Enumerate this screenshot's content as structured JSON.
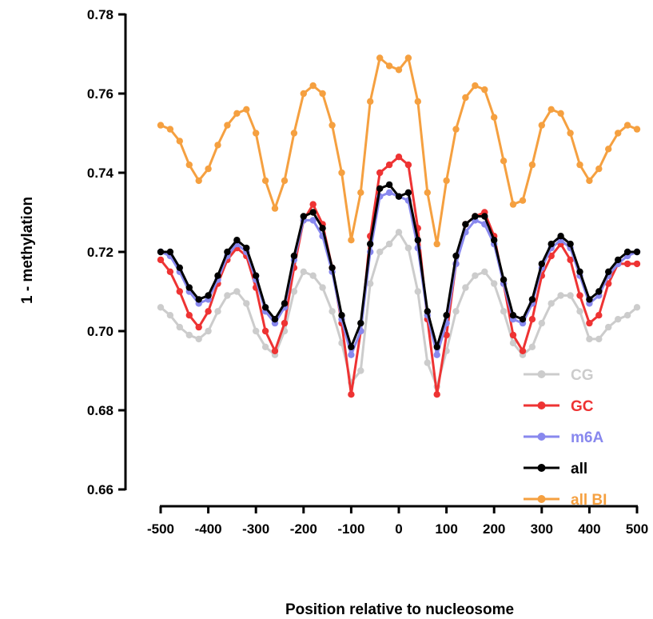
{
  "chart_data": {
    "type": "line",
    "xlabel": "Position relative to nucleosome",
    "ylabel": "1 - methylation",
    "xlim": [
      -500,
      500
    ],
    "ylim": [
      0.66,
      0.78
    ],
    "x_ticks": [
      -500,
      -400,
      -300,
      -200,
      -100,
      0,
      100,
      200,
      300,
      400,
      500
    ],
    "x_tick_labels": [
      "-500",
      "-400",
      "-300",
      "-200",
      "-100",
      "0",
      "100",
      "200",
      "300",
      "400",
      "500"
    ],
    "y_ticks": [
      0.66,
      0.68,
      0.7,
      0.72,
      0.74,
      0.76,
      0.78
    ],
    "y_tick_labels": [
      "0.66",
      "0.68",
      "0.70",
      "0.72",
      "0.74",
      "0.76",
      "0.78"
    ],
    "grid": false,
    "legend_position": "bottom-right",
    "x": [
      -500,
      -480,
      -460,
      -440,
      -420,
      -400,
      -380,
      -360,
      -340,
      -320,
      -300,
      -280,
      -260,
      -240,
      -220,
      -200,
      -180,
      -160,
      -140,
      -120,
      -100,
      -80,
      -60,
      -40,
      -20,
      0,
      20,
      40,
      60,
      80,
      100,
      120,
      140,
      160,
      180,
      200,
      220,
      240,
      260,
      280,
      300,
      320,
      340,
      360,
      380,
      400,
      420,
      440,
      460,
      480,
      500
    ],
    "series": [
      {
        "name": "CG",
        "color": "#cccccc",
        "values": [
          0.706,
          0.704,
          0.701,
          0.699,
          0.698,
          0.7,
          0.705,
          0.709,
          0.71,
          0.707,
          0.7,
          0.696,
          0.694,
          0.7,
          0.71,
          0.715,
          0.714,
          0.711,
          0.705,
          0.697,
          0.687,
          0.69,
          0.712,
          0.72,
          0.722,
          0.725,
          0.721,
          0.71,
          0.692,
          0.686,
          0.695,
          0.705,
          0.711,
          0.714,
          0.715,
          0.712,
          0.705,
          0.697,
          0.694,
          0.696,
          0.702,
          0.707,
          0.709,
          0.709,
          0.705,
          0.698,
          0.698,
          0.701,
          0.703,
          0.704,
          0.706
        ]
      },
      {
        "name": "GC",
        "color": "#ee3333",
        "values": [
          0.718,
          0.715,
          0.71,
          0.704,
          0.701,
          0.705,
          0.712,
          0.718,
          0.721,
          0.719,
          0.711,
          0.7,
          0.695,
          0.702,
          0.716,
          0.728,
          0.732,
          0.727,
          0.716,
          0.702,
          0.684,
          0.7,
          0.724,
          0.74,
          0.742,
          0.744,
          0.742,
          0.726,
          0.703,
          0.684,
          0.699,
          0.717,
          0.727,
          0.729,
          0.73,
          0.724,
          0.712,
          0.699,
          0.695,
          0.703,
          0.714,
          0.719,
          0.722,
          0.718,
          0.709,
          0.702,
          0.704,
          0.712,
          0.717,
          0.717,
          0.717
        ]
      },
      {
        "name": "m6A",
        "color": "#8888ee",
        "values": [
          0.72,
          0.719,
          0.715,
          0.71,
          0.707,
          0.708,
          0.713,
          0.719,
          0.722,
          0.72,
          0.713,
          0.705,
          0.702,
          0.706,
          0.718,
          0.728,
          0.728,
          0.724,
          0.715,
          0.703,
          0.694,
          0.7,
          0.72,
          0.734,
          0.735,
          0.734,
          0.733,
          0.721,
          0.704,
          0.694,
          0.702,
          0.717,
          0.725,
          0.728,
          0.727,
          0.722,
          0.712,
          0.703,
          0.702,
          0.707,
          0.716,
          0.721,
          0.723,
          0.721,
          0.714,
          0.707,
          0.709,
          0.714,
          0.717,
          0.719,
          0.72
        ]
      },
      {
        "name": "all",
        "color": "#000000",
        "values": [
          0.72,
          0.72,
          0.716,
          0.711,
          0.708,
          0.709,
          0.714,
          0.72,
          0.723,
          0.721,
          0.714,
          0.706,
          0.703,
          0.707,
          0.719,
          0.729,
          0.73,
          0.726,
          0.716,
          0.704,
          0.696,
          0.702,
          0.722,
          0.736,
          0.737,
          0.734,
          0.735,
          0.723,
          0.705,
          0.696,
          0.704,
          0.719,
          0.727,
          0.729,
          0.729,
          0.723,
          0.713,
          0.704,
          0.703,
          0.708,
          0.717,
          0.722,
          0.724,
          0.722,
          0.715,
          0.708,
          0.71,
          0.715,
          0.718,
          0.72,
          0.72
        ]
      },
      {
        "name": "all BI",
        "color": "#f5a040",
        "values": [
          0.752,
          0.751,
          0.748,
          0.742,
          0.738,
          0.741,
          0.747,
          0.752,
          0.755,
          0.756,
          0.75,
          0.738,
          0.731,
          0.738,
          0.75,
          0.76,
          0.762,
          0.76,
          0.752,
          0.74,
          0.723,
          0.735,
          0.758,
          0.769,
          0.767,
          0.766,
          0.769,
          0.758,
          0.735,
          0.722,
          0.738,
          0.751,
          0.759,
          0.762,
          0.761,
          0.754,
          0.743,
          0.732,
          0.733,
          0.742,
          0.752,
          0.756,
          0.755,
          0.75,
          0.742,
          0.738,
          0.741,
          0.746,
          0.75,
          0.752,
          0.751
        ]
      }
    ]
  }
}
